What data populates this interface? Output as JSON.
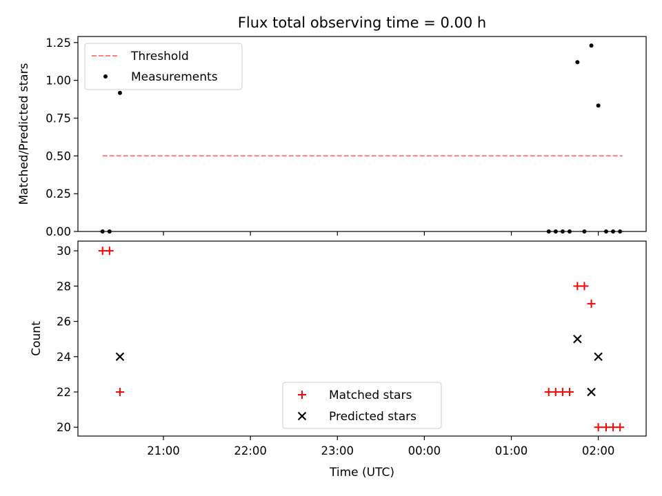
{
  "chart_data": [
    {
      "type": "scatter",
      "title": "Flux total observing time = 0.00 h",
      "xlabel": "",
      "ylabel": "Matched/Predicted stars",
      "ylim": [
        0,
        1.29
      ],
      "xlim_hours": [
        20.0167,
        26.55
      ],
      "yticks": [
        {
          "value": 0,
          "label": "0.00"
        },
        {
          "value": 0.25,
          "label": "0.25"
        },
        {
          "value": 0.5,
          "label": "0.50"
        },
        {
          "value": 0.75,
          "label": "0.75"
        },
        {
          "value": 1.0,
          "label": "1.00"
        },
        {
          "value": 1.25,
          "label": "1.25"
        }
      ],
      "legend_position": "top-left",
      "threshold": {
        "name": "Threshold",
        "value": 0.5,
        "x_range": [
          20.3,
          26.28
        ],
        "color": "#ff7f7f"
      },
      "series": [
        {
          "name": "Measurements",
          "color": "#000000",
          "x": [
            20.3,
            20.38,
            20.5,
            25.43,
            25.51,
            25.59,
            25.67,
            25.76,
            25.84,
            25.92,
            26.0,
            26.09,
            26.17,
            26.25
          ],
          "values": [
            0,
            0,
            0.917,
            0,
            0,
            0,
            0,
            1.12,
            0,
            1.23,
            0.833,
            0,
            0,
            0
          ]
        }
      ]
    },
    {
      "type": "scatter",
      "title": "",
      "xlabel": "Time (UTC)",
      "ylabel": "Count",
      "ylim": [
        19.5,
        30.55
      ],
      "xlim_hours": [
        20.0167,
        26.55
      ],
      "yticks": [
        {
          "value": 20,
          "label": "20"
        },
        {
          "value": 22,
          "label": "22"
        },
        {
          "value": 24,
          "label": "24"
        },
        {
          "value": 26,
          "label": "26"
        },
        {
          "value": 28,
          "label": "28"
        },
        {
          "value": 30,
          "label": "30"
        }
      ],
      "xticks": [
        {
          "value": 21,
          "label": "21:00"
        },
        {
          "value": 22,
          "label": "22:00"
        },
        {
          "value": 23,
          "label": "23:00"
        },
        {
          "value": 24,
          "label": "00:00"
        },
        {
          "value": 25,
          "label": "01:00"
        },
        {
          "value": 26,
          "label": "02:00"
        }
      ],
      "legend_position": "lower-center",
      "series": [
        {
          "name": "Matched stars",
          "marker": "+",
          "color": "#ff0000",
          "x": [
            20.3,
            20.38,
            20.5,
            25.43,
            25.51,
            25.59,
            25.67,
            25.76,
            25.84,
            25.92,
            26.0,
            26.09,
            26.17,
            26.25
          ],
          "values": [
            30,
            30,
            22,
            22,
            22,
            22,
            22,
            28,
            28,
            27,
            20,
            20,
            20,
            20
          ]
        },
        {
          "name": "Predicted stars",
          "marker": "x",
          "color": "#000000",
          "x": [
            20.5,
            25.76,
            25.92,
            26.0
          ],
          "values": [
            24,
            25,
            22,
            24
          ]
        }
      ]
    }
  ]
}
